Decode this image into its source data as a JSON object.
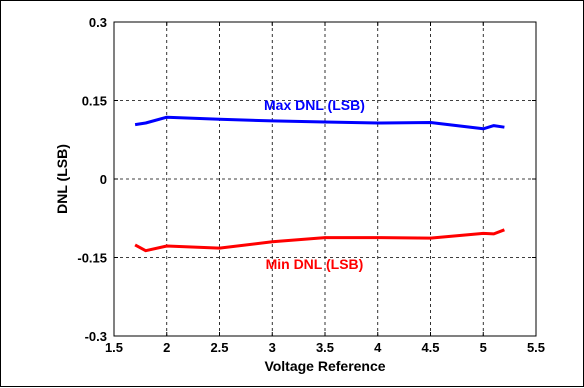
{
  "chart_data": {
    "type": "line",
    "title": "",
    "xlabel": "Voltage Reference",
    "ylabel": "DNL (LSB)",
    "xlim": [
      1.5,
      5.5
    ],
    "ylim": [
      -0.3,
      0.3
    ],
    "xticks": [
      1.5,
      2,
      2.5,
      3,
      3.5,
      4,
      4.5,
      5,
      5.5
    ],
    "yticks": [
      -0.3,
      -0.15,
      0,
      0.15,
      0.3
    ],
    "xtick_labels": [
      "1.5",
      "2",
      "2.5",
      "3",
      "3.5",
      "4",
      "4.5",
      "5",
      "5.5"
    ],
    "ytick_labels": [
      "-0.3",
      "-0.15",
      "0",
      "0.15",
      "0.3"
    ],
    "grid": true,
    "series": [
      {
        "name": "Max DNL (LSB)",
        "color": "#0000ff",
        "x": [
          1.7,
          1.8,
          2.0,
          2.5,
          3.0,
          3.5,
          4.0,
          4.5,
          5.0,
          5.1,
          5.2
        ],
        "y": [
          0.104,
          0.107,
          0.118,
          0.114,
          0.111,
          0.109,
          0.107,
          0.108,
          0.096,
          0.102,
          0.099
        ]
      },
      {
        "name": "Min DNL (LSB)",
        "color": "#ff0000",
        "x": [
          1.7,
          1.8,
          2.0,
          2.5,
          3.0,
          3.5,
          4.0,
          4.5,
          5.0,
          5.1,
          5.2
        ],
        "y": [
          -0.126,
          -0.137,
          -0.128,
          -0.132,
          -0.12,
          -0.112,
          -0.112,
          -0.113,
          -0.104,
          -0.105,
          -0.097
        ]
      }
    ]
  }
}
